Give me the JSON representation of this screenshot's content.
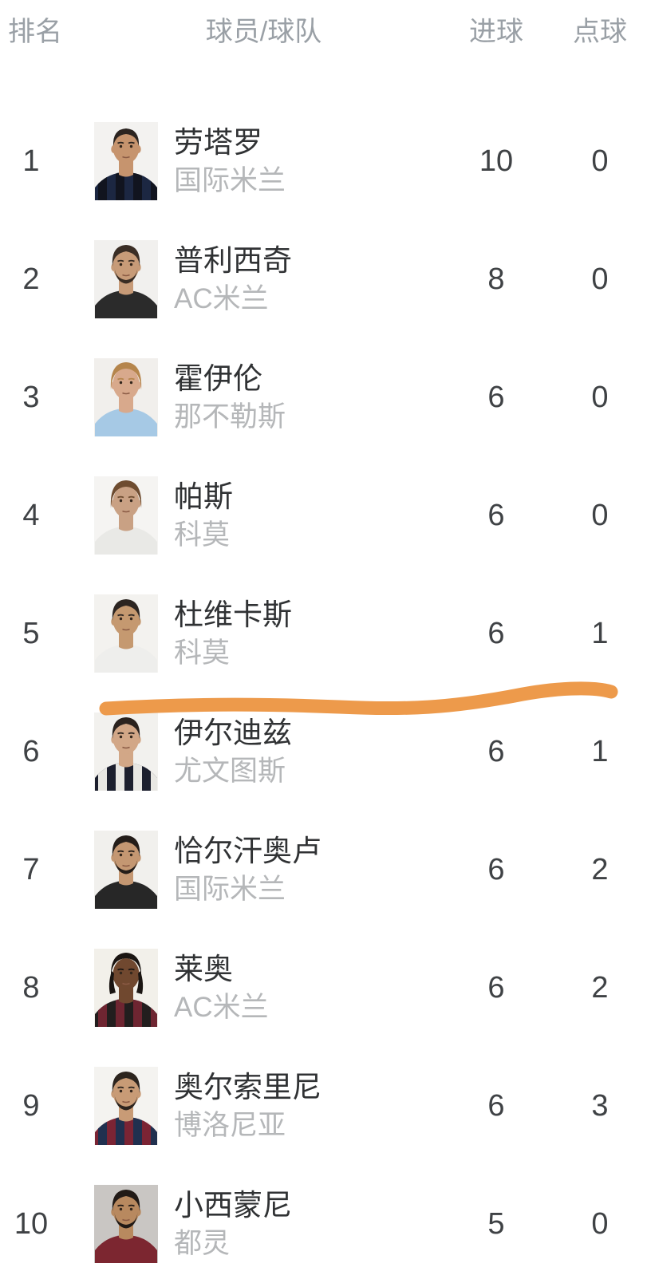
{
  "table": {
    "headers": {
      "rank": "排名",
      "player": "球员/球队",
      "goals": "进球",
      "penalties": "点球"
    },
    "rows": [
      {
        "rank": "1",
        "player": "劳塔罗",
        "team": "国际米兰",
        "goals": "10",
        "penalties": "0",
        "avatar": {
          "bg": "#f3f2f0",
          "skin": "#c6946e",
          "hair": "#2b2420",
          "hair_style": "buzz",
          "beard": null,
          "jersey": "#1c2742",
          "jersey_stripe": "#11141f"
        }
      },
      {
        "rank": "2",
        "player": "普利西奇",
        "team": "AC米兰",
        "goals": "8",
        "penalties": "0",
        "avatar": {
          "bg": "#f1f0ee",
          "skin": "#c79b78",
          "hair": "#3a2d24",
          "hair_style": "short",
          "beard": "#3a2d24",
          "jersey": "#2b2b2b",
          "jersey_stripe": null
        }
      },
      {
        "rank": "3",
        "player": "霍伊伦",
        "team": "那不勒斯",
        "goals": "6",
        "penalties": "0",
        "avatar": {
          "bg": "#f1efec",
          "skin": "#d8a98c",
          "hair": "#b5854c",
          "hair_style": "medium",
          "beard": null,
          "jersey": "#a6c9e5",
          "jersey_stripe": null
        }
      },
      {
        "rank": "4",
        "player": "帕斯",
        "team": "科莫",
        "goals": "6",
        "penalties": "0",
        "avatar": {
          "bg": "#f5f4f2",
          "skin": "#c9a184",
          "hair": "#6e4c30",
          "hair_style": "medium",
          "beard": null,
          "jersey": "#e9e9e6",
          "jersey_stripe": null
        }
      },
      {
        "rank": "5",
        "player": "杜维卡斯",
        "team": "科莫",
        "goals": "6",
        "penalties": "1",
        "avatar": {
          "bg": "#f3f2ef",
          "skin": "#c59970",
          "hair": "#2c2521",
          "hair_style": "short",
          "beard": null,
          "jersey": "#eeeeec",
          "jersey_stripe": null
        }
      },
      {
        "rank": "6",
        "player": "伊尔迪兹",
        "team": "尤文图斯",
        "goals": "6",
        "penalties": "1",
        "avatar": {
          "bg": "#f2f1ee",
          "skin": "#d2a787",
          "hair": "#2a221e",
          "hair_style": "short",
          "beard": null,
          "jersey": "#1c1f2e",
          "jersey_stripe": "#e8e7e3"
        }
      },
      {
        "rank": "7",
        "player": "恰尔汗奥卢",
        "team": "国际米兰",
        "goals": "6",
        "penalties": "2",
        "avatar": {
          "bg": "#f1f0ed",
          "skin": "#c49772",
          "hair": "#241d19",
          "hair_style": "short",
          "beard": "#241d19",
          "jersey": "#272727",
          "jersey_stripe": null
        }
      },
      {
        "rank": "8",
        "player": "莱奥",
        "team": "AC米兰",
        "goals": "6",
        "penalties": "2",
        "avatar": {
          "bg": "#f2f0ea",
          "skin": "#70482f",
          "hair": "#1a1512",
          "hair_style": "dreads",
          "beard": null,
          "jersey": "#221e1e",
          "jersey_stripe": "#6e2531"
        }
      },
      {
        "rank": "9",
        "player": "奥尔索里尼",
        "team": "博洛尼亚",
        "goals": "6",
        "penalties": "3",
        "avatar": {
          "bg": "#f4f3f0",
          "skin": "#c89b76",
          "hair": "#2c241e",
          "hair_style": "short",
          "beard": "#2c241e",
          "jersey": "#7b2434",
          "jersey_stripe": "#20304f"
        }
      },
      {
        "rank": "10",
        "player": "小西蒙尼",
        "team": "都灵",
        "goals": "5",
        "penalties": "0",
        "avatar": {
          "bg": "#c9c6c3",
          "skin": "#b8895f",
          "hair": "#211a16",
          "hair_style": "short",
          "beard": "#211a16",
          "jersey": "#7c2630",
          "jersey_stripe": null
        }
      }
    ]
  },
  "annotation": {
    "type": "hand-drawn-marker-line",
    "color": "#ED9A4B"
  },
  "colors": {
    "background": "#ffffff",
    "header_text": "#9aa0a6",
    "player_name": "#303234",
    "team_name": "#b5b7b9",
    "stat_value": "#3f4245",
    "marker": "#ED9A4B"
  }
}
